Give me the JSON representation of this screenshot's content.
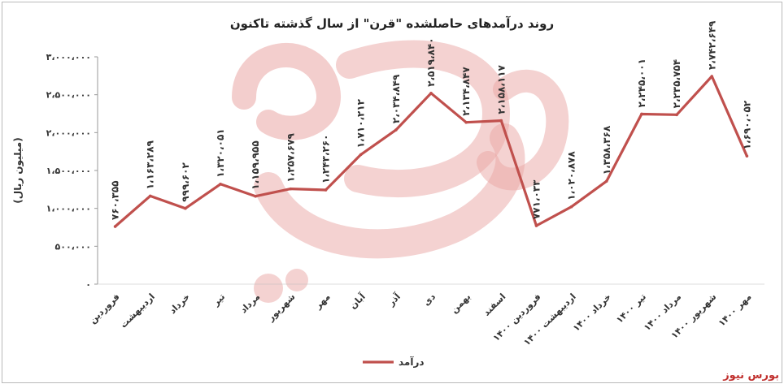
{
  "chart_data": {
    "type": "line",
    "title": "روند درآمدهای حاصلشده \"قرن\" از سال گذشته تاکنون",
    "xlabel": "",
    "ylabel": "(میلیون ریال)",
    "ylim": [
      0,
      3000000
    ],
    "y_ticks": [
      "۰",
      "۵۰۰،۰۰۰",
      "۱،۰۰۰،۰۰۰",
      "۱،۵۰۰،۰۰۰",
      "۲،۰۰۰،۰۰۰",
      "۲،۵۰۰،۰۰۰",
      "۳،۰۰۰،۰۰۰"
    ],
    "y_tick_values": [
      0,
      500000,
      1000000,
      1500000,
      2000000,
      2500000,
      3000000
    ],
    "grid": false,
    "legend_position": "bottom",
    "categories": [
      "فروردین",
      "اردیبهشت",
      "خرداد",
      "تیر",
      "مرداد",
      "شهریور",
      "مهر",
      "آبان",
      "آذر",
      "دی",
      "بهمن",
      "اسفند",
      "فروردین ۱۴۰۰",
      "اردیبهشت ۱۴۰۰",
      "خرداد ۱۴۰۰",
      "تیر ۱۴۰۰",
      "مرداد ۱۴۰۰",
      "شهریور ۱۴۰۰",
      "مهر ۱۴۰۰"
    ],
    "series": [
      {
        "name": "درآمد",
        "color": "#c0504d",
        "values": [
          760355,
          1163289,
          999602,
          1320051,
          1159955,
          1257679,
          1243260,
          1710212,
          2034849,
          2519840,
          2134847,
          2158117,
          771033,
          1020878,
          1358368,
          2245001,
          2235754,
          2742649,
          1690052
        ],
        "labels": [
          "۷۶۰،۳۵۵",
          "۱،۱۶۳،۲۸۹",
          "۹۹۹،۶۰۲",
          "۱،۳۲۰،۰۵۱",
          "۱،۱۵۹،۹۵۵",
          "۱،۲۵۷،۶۷۹",
          "۱،۲۴۳،۲۶۰",
          "۱،۷۱۰،۲۱۲",
          "۲،۰۳۴،۸۴۹",
          "۲،۵۱۹،۸۴۰",
          "۲،۱۳۴،۸۴۷",
          "۲،۱۵۸،۱۱۷",
          "۷۷۱،۰۳۳",
          "۱،۰۲۰،۸۷۸",
          "۱،۳۵۸،۳۶۸",
          "۲،۲۴۵،۰۰۱",
          "۲،۲۳۵،۷۵۴",
          "۲،۷۴۲،۶۴۹",
          "۱،۶۹۰،۰۵۲"
        ]
      }
    ]
  },
  "brand": {
    "text": "بورس نیوز",
    "color": "#c0302e"
  }
}
